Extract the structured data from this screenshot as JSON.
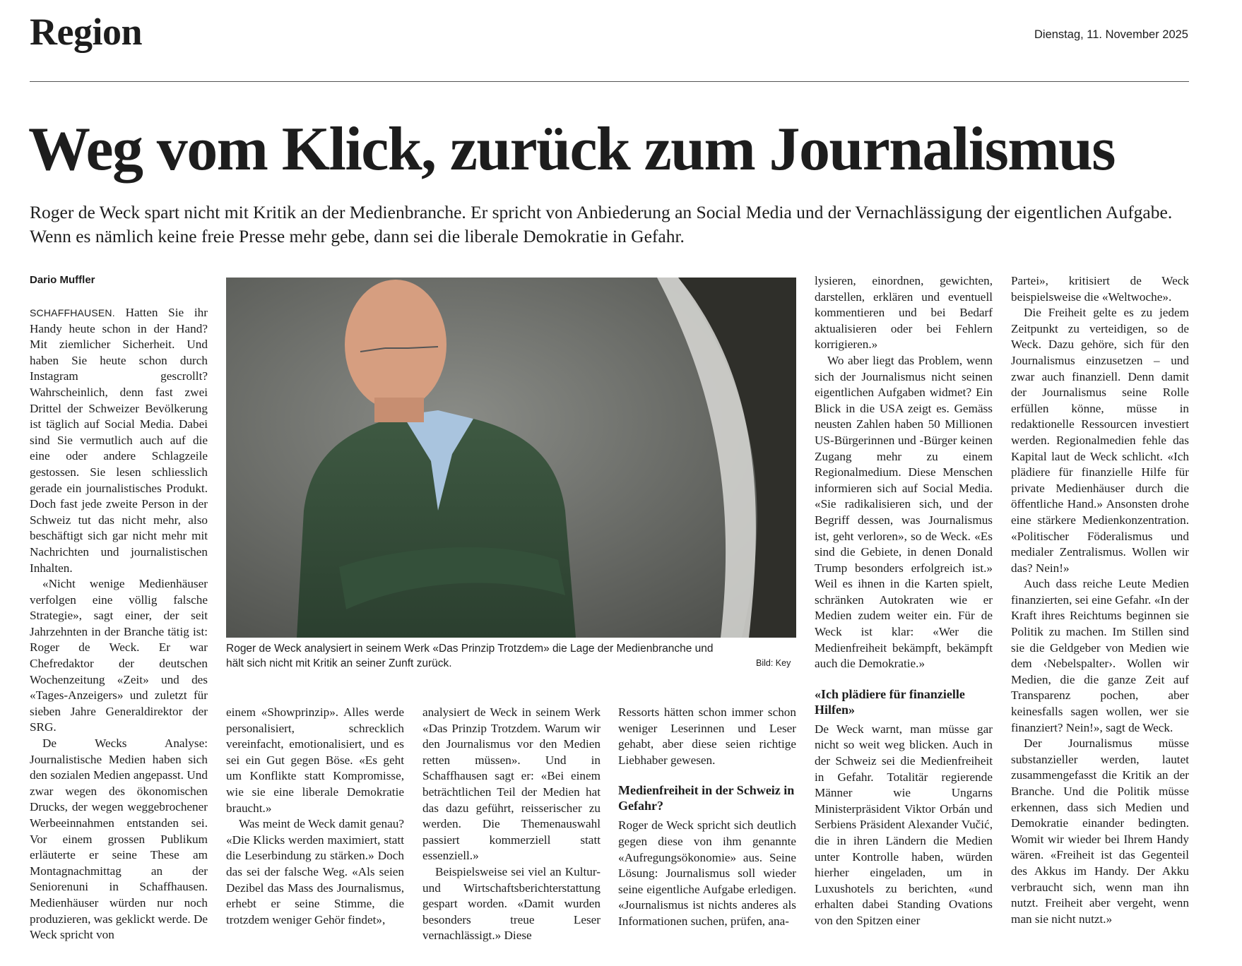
{
  "header": {
    "section": "Region",
    "date": "Dienstag, 11. November 2025"
  },
  "headline": "Weg vom Klick, zurück zum Journalismus",
  "lead": "Roger de Weck spart nicht mit Kritik an der Medienbranche. Er spricht von Anbiederung an Social Media und der Vernachlässigung der eigentlichen Aufgabe. Wenn es nämlich keine freie Presse mehr gebe, dann sei die liberale Demokratie in Gefahr.",
  "author": "Dario Muffler",
  "photo": {
    "caption": "Roger de Weck analysiert in seinem Werk «Das Prinzip Trotzdem» die Lage der Medienbranche und hält sich nicht mit Kritik an seiner Zunft zurück.",
    "credit": "Bild: Key"
  },
  "columns": [
    {
      "blocks": [
        {
          "dateline": "SCHAFFHAUSEN.",
          "text": "Hatten Sie ihr Handy heute schon in der Hand? Mit ziemlicher Sicherheit. Und haben Sie heute schon durch Instagram gescrollt? Wahrscheinlich, denn fast zwei Drittel der Schweizer Bevölkerung ist täglich auf Social Media. Dabei sind Sie vermutlich auch auf die eine oder andere Schlagzeile gestossen. Sie lesen schliesslich gerade ein journalistisches Produkt. Doch fast jede zweite Person in der Schweiz tut das nicht mehr, also beschäftigt sich gar nicht mehr mit Nachrichten und journalistischen Inhalten."
        },
        {
          "text": "«Nicht wenige Medienhäuser verfolgen eine völlig falsche Strategie», sagt einer, der seit Jahrzehnten in der Branche tätig ist: Roger de Weck. Er war Chefredaktor der deutschen Wochenzeitung «Zeit» und des «Tages-Anzeigers» und zuletzt für sieben Jahre Generaldirektor der SRG."
        },
        {
          "text": "De Wecks Analyse: Journalistische Medien haben sich den sozialen Medien angepasst. Und zwar wegen des ökonomischen Drucks, der wegen weggebrochener Werbeeinnahmen entstanden sei. Vor einem grossen Publikum erläuterte er seine These am Montagnachmittag an der Seniorenuni in Schaffhausen. Medienhäuser würden nur noch produzieren, was geklickt werde. De Weck spricht von"
        }
      ]
    },
    {
      "blocks": [
        {
          "text": "einem «Showprinzip». Alles werde personalisiert, schrecklich vereinfacht, emotionalisiert, und es sei ein Gut gegen Böse. «Es geht um Konflikte statt Kompromisse, wie sie eine liberale Demokratie braucht.»"
        },
        {
          "text": "Was meint de Weck damit genau? «Die Klicks werden maximiert, statt die Leserbindung zu stärken.» Doch das sei der falsche Weg. «Als seien Dezibel das Mass des Journalismus, erhebt er seine Stimme, die trotzdem weniger Gehör findet»,"
        }
      ]
    },
    {
      "blocks": [
        {
          "text": "analysiert de Weck in seinem Werk «Das Prinzip Trotzdem. Warum wir den Journalismus vor den Medien retten müssen». Und in Schaffhausen sagt er: «Bei einem beträchtlichen Teil der Medien hat das dazu geführt, reisserischer zu werden. Die Themenauswahl passiert kommerziell statt essenziell.»"
        },
        {
          "text": "Beispielsweise sei viel an Kultur- und Wirtschaftsberichterstattung gespart worden. «Damit wurden besonders treue Leser vernachlässigt.» Diese"
        }
      ]
    },
    {
      "blocks": [
        {
          "text": "Ressorts hätten schon immer schon weniger Leserinnen und Leser gehabt, aber diese seien richtige Liebhaber gewesen."
        },
        {
          "subhead": "Medienfreiheit in der Schweiz in Gefahr?"
        },
        {
          "text": "Roger de Weck spricht sich deutlich gegen diese von ihm genannte «Aufregungsökonomie» aus. Seine Lösung: Journalismus soll wieder seine eigentliche Aufgabe erledigen. «Journalismus ist nichts anderes als Informationen suchen, prüfen, ana-"
        }
      ]
    },
    {
      "blocks": [
        {
          "text": "lysieren, einordnen, gewichten, darstellen, erklären und eventuell kommentieren und bei Bedarf aktualisieren oder bei Fehlern korrigieren.»"
        },
        {
          "text": "Wo aber liegt das Problem, wenn sich der Journalismus nicht seinen eigentlichen Aufgaben widmet? Ein Blick in die USA zeigt es. Gemäss neusten Zahlen haben 50 Millionen US-Bürgerinnen und -Bürger keinen Zugang mehr zu einem Regionalmedium. Diese Menschen informieren sich auf Social Media. «Sie radikalisieren sich, und der Begriff dessen, was Journalismus ist, geht verloren», so de Weck. «Es sind die Gebiete, in denen Donald Trump besonders erfolgreich ist.» Weil es ihnen in die Karten spielt, schränken Autokraten wie er Medien zudem weiter ein. Für de Weck ist klar: «Wer die Medienfreiheit bekämpft, bekämpft auch die Demokratie.»"
        },
        {
          "subhead": "«Ich plädiere für finanzielle Hilfen»"
        },
        {
          "text": "De Weck warnt, man müsse gar nicht so weit weg blicken. Auch in der Schweiz sei die Medienfreiheit in Gefahr. Totalitär regierende Männer wie Ungarns Ministerpräsident Viktor Orbán und Serbiens Präsident Alexander Vučić, die in ihren Ländern die Medien unter Kontrolle haben, würden hierher eingeladen, um in Luxushotels zu berichten, «und erhalten dabei Standing Ovations von den Spitzen einer"
        }
      ]
    },
    {
      "blocks": [
        {
          "text": "Partei», kritisiert de Weck beispielsweise die «Weltwoche»."
        },
        {
          "text": "Die Freiheit gelte es zu jedem Zeitpunkt zu verteidigen, so de Weck. Dazu gehöre, sich für den Journalismus einzusetzen – und zwar auch finanziell. Denn damit der Journalismus seine Rolle erfüllen könne, müsse in redaktionelle Ressourcen investiert werden. Regionalmedien fehle das Kapital laut de Weck schlicht. «Ich plädiere für finanzielle Hilfe für private Medienhäuser durch die öffentliche Hand.» Ansonsten drohe eine stärkere Medienkonzentration. «Politischer Föderalismus und medialer Zentralismus. Wollen wir das? Nein!»"
        },
        {
          "text": "Auch dass reiche Leute Medien finanzierten, sei eine Gefahr. «In der Kraft ihres Reichtums beginnen sie Politik zu machen. Im Stillen sind sie die Geldgeber von Medien wie dem ‹Nebelspalter›. Wollen wir Medien, die die ganze Zeit auf Transparenz pochen, aber keinesfalls sagen wollen, wer sie finanziert? Nein!», sagt de Weck."
        },
        {
          "text": "Der Journalismus müsse substanzieller werden, lautet zusammengefasst die Kritik an der Branche. Und die Politik müsse erkennen, dass sich Medien und Demokratie einander bedingten. Womit wir wieder bei Ihrem Handy wären. «Freiheit ist das Gegenteil des Akkus im Handy. Der Akku verbraucht sich, wenn man ihn nutzt. Freiheit aber vergeht, wenn man sie nicht nutzt.»"
        }
      ]
    }
  ]
}
